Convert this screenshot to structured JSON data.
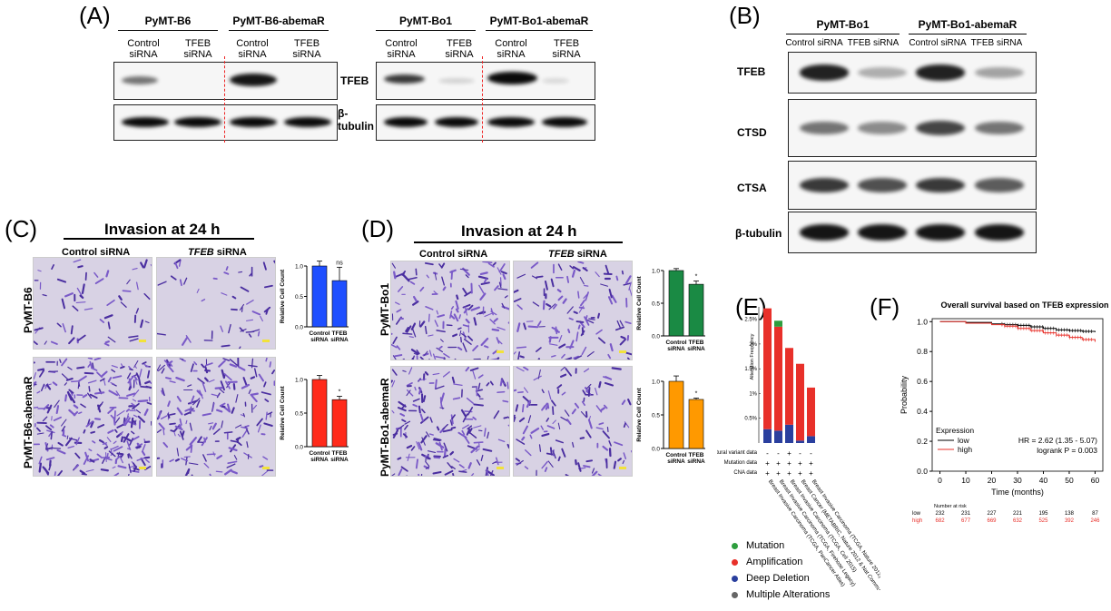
{
  "panels": {
    "A": {
      "letter": "(A)",
      "groups": [
        {
          "name": "PyMT-B6",
          "lanes": [
            "Control\nsiRNA",
            "TFEB\nsiRNA"
          ]
        },
        {
          "name": "PyMT-B6-abemaR",
          "lanes": [
            "Control\nsiRNA",
            "TFEB\nsiRNA"
          ]
        },
        {
          "name": "PyMT-Bo1",
          "lanes": [
            "Control\nsiRNA",
            "TFEB\nsiRNA"
          ]
        },
        {
          "name": "PyMT-Bo1-abemaR",
          "lanes": [
            "Control\nsiRNA",
            "TFEB\nsiRNA"
          ]
        }
      ],
      "row_labels": [
        "TFEB",
        "β-\ntubulin"
      ]
    },
    "B": {
      "letter": "(B)",
      "groups": [
        "PyMT-Bo1",
        "PyMT-Bo1-abemaR"
      ],
      "lanes": [
        "Control siRNA",
        "TFEB siRNA",
        "Control siRNA",
        "TFEB siRNA"
      ],
      "row_labels": [
        "TFEB",
        "CTSD",
        "CTSA",
        "β-tubulin"
      ],
      "band_intensity": [
        [
          0.9,
          0.3,
          0.9,
          0.35
        ],
        [
          0.55,
          0.45,
          0.75,
          0.55
        ],
        [
          0.8,
          0.7,
          0.8,
          0.65
        ],
        [
          0.95,
          0.95,
          0.95,
          0.95
        ]
      ]
    },
    "C": {
      "letter": "(C)",
      "title": "Invasion at 24 h",
      "col1": "Control siRNA",
      "col2_italic": "TFEB",
      "col2_rest": " siRNA",
      "rows": [
        "PyMT-B6",
        "PyMT-B6-abemaR"
      ]
    },
    "D": {
      "letter": "(D)",
      "title": "Invasion at 24 h",
      "col1": "Control siRNA",
      "col2_italic": "TFEB",
      "col2_rest": " siRNA",
      "rows": [
        "PyMT-Bo1",
        "PyMT-Bo1-abemaR"
      ]
    },
    "E": {
      "letter": "(E)",
      "ylabel": "Alteration Frequency",
      "row_labels": [
        "Structural variant data",
        "Mutation data",
        "CNA data"
      ],
      "legend": [
        {
          "label": "Mutation",
          "color": "#2e9e3e"
        },
        {
          "label": "Amplification",
          "color": "#e8302a"
        },
        {
          "label": "Deep Deletion",
          "color": "#2a3f9e"
        },
        {
          "label": "Multiple Alterations",
          "color": "#666666"
        }
      ]
    },
    "F": {
      "letter": "(F)",
      "title": "Overall survival based on TFEB expression",
      "ylabel": "Probability",
      "xlabel": "Time (months)",
      "legend_title": "Expression",
      "legend_low": "low",
      "legend_high": "high",
      "hr_text": "HR = 2.62 (1.35 - 5.07)",
      "p_text": "logrank P = 0.003",
      "risk_title": "Number at risk",
      "risk_low_label": "low",
      "risk_high_label": "high",
      "risk_low": [
        "232",
        "231",
        "227",
        "221",
        "195",
        "138",
        "87"
      ],
      "risk_high": [
        "682",
        "677",
        "669",
        "632",
        "525",
        "392",
        "246"
      ]
    }
  },
  "chart_data": [
    {
      "type": "bar",
      "panel": "C-top",
      "categories": [
        "Control\nsiRNA",
        "TFEB\nsiRNA"
      ],
      "values": [
        1.0,
        0.76
      ],
      "errors": [
        0.08,
        0.22
      ],
      "ylabel": "Relative Cell Count",
      "ylim": [
        0,
        1.0
      ],
      "yticks": [
        "0.0",
        "0.5",
        "1.0"
      ],
      "annotations": [
        "",
        "ns"
      ],
      "color": "#1f4fff"
    },
    {
      "type": "bar",
      "panel": "C-bottom",
      "categories": [
        "Control\nsiRNA",
        "TFEB\nsiRNA"
      ],
      "values": [
        1.0,
        0.7
      ],
      "errors": [
        0.06,
        0.05
      ],
      "ylabel": "Relative Cell Count",
      "ylim": [
        0,
        1.0
      ],
      "yticks": [
        "0.0",
        "0.5",
        "1.0"
      ],
      "annotations": [
        "",
        "*"
      ],
      "color": "#ff2a1a"
    },
    {
      "type": "bar",
      "panel": "D-top",
      "categories": [
        "Control\nsiRNA",
        "TFEB\nsiRNA"
      ],
      "values": [
        1.0,
        0.79
      ],
      "errors": [
        0.03,
        0.05
      ],
      "ylabel": "Relative Cell Count",
      "ylim": [
        0,
        1.0
      ],
      "yticks": [
        "0.0",
        "0.5",
        "1.0"
      ],
      "annotations": [
        "",
        "*"
      ],
      "color": "#1a8a44"
    },
    {
      "type": "bar",
      "panel": "D-bottom",
      "categories": [
        "Control\nsiRNA",
        "TFEB\nsiRNA"
      ],
      "values": [
        1.0,
        0.73
      ],
      "errors": [
        0.08,
        0.02
      ],
      "ylabel": "Relative Cell Count",
      "ylim": [
        0,
        1.0
      ],
      "yticks": [
        "0.0",
        "0.5",
        "1.0"
      ],
      "annotations": [
        "",
        "*"
      ],
      "color": "#ff9900"
    },
    {
      "type": "bar",
      "panel": "E",
      "stacked": true,
      "categories": [
        "Breast Invasive Carcinoma (TCGA, PanCancer Atlas)",
        "Breast Invasive Carcinoma (TCGA, Firehose Legacy)",
        "Breast Invasive Carcinoma (TCGA, Cell 2015)",
        "Breast Cancer (METABRIC, Nature 2012 & Nat Commun 2016)",
        "Breast Invasive Carcinoma (TCGA, Nature 2012)"
      ],
      "series": [
        {
          "name": "Deep Deletion",
          "values": [
            0.28,
            0.25,
            0.37,
            0.05,
            0.14
          ],
          "color": "#2a3f9e"
        },
        {
          "name": "Amplification",
          "values": [
            2.44,
            2.1,
            1.55,
            1.55,
            0.98
          ],
          "color": "#e8302a"
        },
        {
          "name": "Mutation",
          "values": [
            0.0,
            0.12,
            0.0,
            0.0,
            0.0
          ],
          "color": "#2e9e3e"
        }
      ],
      "ylabel": "Alteration Frequency",
      "ylim": [
        0,
        2.75
      ],
      "yticks": [
        "0.5%",
        "1%",
        "1.5%",
        "2%",
        "2.5%"
      ],
      "data_row_marks": [
        [
          "-",
          "-",
          "+",
          "-",
          "-"
        ],
        [
          "+",
          "+",
          "+",
          "+",
          "+"
        ],
        [
          "+",
          "+",
          "+",
          "+",
          "+"
        ]
      ]
    },
    {
      "type": "line",
      "panel": "F",
      "title": "Overall survival based on TFEB expression",
      "xlabel": "Time (months)",
      "ylabel": "Probability",
      "xlim": [
        -3,
        63
      ],
      "ylim": [
        0,
        1.02
      ],
      "xticks": [
        "0",
        "10",
        "20",
        "30",
        "40",
        "50",
        "60"
      ],
      "yticks": [
        "0.0",
        "0.2",
        "0.4",
        "0.6",
        "0.8",
        "1.0"
      ],
      "series": [
        {
          "name": "low",
          "x": [
            0,
            10,
            20,
            25,
            30,
            35,
            40,
            45,
            50,
            55,
            60
          ],
          "y": [
            1.0,
            0.995,
            0.985,
            0.98,
            0.975,
            0.965,
            0.955,
            0.945,
            0.94,
            0.935,
            0.93
          ],
          "color": "#000000"
        },
        {
          "name": "high",
          "x": [
            0,
            10,
            20,
            25,
            30,
            35,
            40,
            45,
            50,
            55,
            60
          ],
          "y": [
            1.0,
            0.99,
            0.98,
            0.97,
            0.955,
            0.94,
            0.925,
            0.91,
            0.895,
            0.88,
            0.865
          ],
          "color": "#e8302a"
        }
      ]
    }
  ]
}
